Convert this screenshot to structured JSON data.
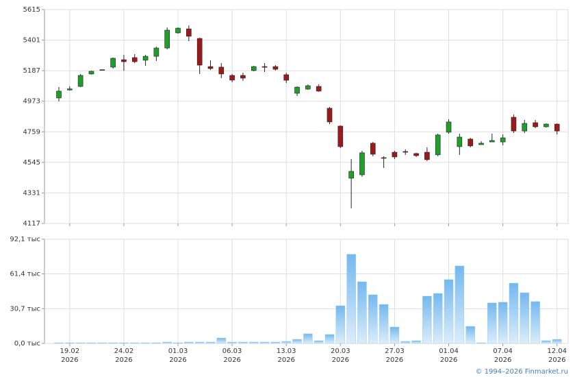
{
  "chart_data": {
    "type": "candlestick",
    "categories": [
      null,
      "19.02\n2026",
      null,
      null,
      null,
      null,
      "24.02\n2026",
      null,
      null,
      null,
      null,
      "01.03\n2026",
      null,
      null,
      null,
      null,
      "06.03\n2026",
      null,
      null,
      null,
      null,
      "13.03\n2026",
      null,
      null,
      null,
      null,
      "20.03\n2026",
      null,
      null,
      null,
      null,
      "27.03\n2026",
      null,
      null,
      null,
      null,
      "01.04\n2026",
      null,
      null,
      null,
      null,
      "07.04\n2026",
      null,
      null,
      null,
      null,
      "12.04\n2026"
    ],
    "open": [
      4996,
      5052,
      5077,
      5164,
      5192,
      5212,
      5264,
      5279,
      5260,
      5288,
      5346,
      5452,
      5480,
      5413,
      5216,
      5212,
      5154,
      5154,
      5188,
      5216,
      5216,
      5159,
      5029,
      5058,
      5077,
      4924,
      4799,
      4434,
      4458,
      4679,
      4573,
      4616,
      4621,
      4607,
      4616,
      4598,
      4756,
      4655,
      4708,
      4669,
      4688,
      4688,
      4861,
      4765,
      4823,
      4794,
      4813
    ],
    "high": [
      5073,
      5078,
      5164,
      5187,
      5196,
      5279,
      5298,
      5303,
      5298,
      5355,
      5490,
      5490,
      5504,
      5418,
      5260,
      5240,
      5164,
      5173,
      5221,
      5240,
      5226,
      5173,
      5077,
      5091,
      5092,
      4933,
      4804,
      4568,
      4626,
      4688,
      4588,
      4626,
      4636,
      4612,
      4650,
      4746,
      4847,
      4746,
      4717,
      4693,
      4746,
      4741,
      4880,
      4842,
      4842,
      4818,
      4818
    ],
    "low": [
      4972,
      5047,
      5072,
      5160,
      5190,
      5202,
      5187,
      5240,
      5221,
      5255,
      5336,
      5447,
      5394,
      5164,
      5192,
      5135,
      5106,
      5116,
      5183,
      5178,
      5188,
      5101,
      5010,
      5053,
      5039,
      4813,
      4645,
      4223,
      4444,
      4588,
      4506,
      4568,
      4597,
      4583,
      4554,
      4588,
      4746,
      4597,
      4650,
      4669,
      4688,
      4665,
      4751,
      4751,
      4784,
      4789,
      4741
    ],
    "close": [
      5044,
      5060,
      5154,
      5183,
      5194,
      5274,
      5250,
      5250,
      5288,
      5346,
      5471,
      5485,
      5428,
      5226,
      5202,
      5164,
      5121,
      5135,
      5216,
      5211,
      5197,
      5120,
      5072,
      5082,
      5044,
      4828,
      4655,
      4482,
      4612,
      4602,
      4578,
      4583,
      4616,
      4592,
      4564,
      4737,
      4828,
      4722,
      4660,
      4679,
      4698,
      4717,
      4765,
      4818,
      4794,
      4813,
      4765
    ],
    "ylim": [
      4117,
      5615
    ],
    "yticks": [
      4117,
      4331,
      4545,
      4759,
      4973,
      5187,
      5401,
      5615
    ],
    "up_color": "#1f9e2a",
    "down_color": "#9e1a1a",
    "grid": true,
    "volume": {
      "type": "bar",
      "color": "#8cc6f2",
      "values": [
        600,
        600,
        600,
        600,
        600,
        600,
        600,
        600,
        600,
        600,
        1200,
        600,
        1200,
        1200,
        1200,
        4800,
        1200,
        1200,
        1200,
        1200,
        1200,
        1800,
        3600,
        8500,
        2400,
        7900,
        33300,
        78800,
        54500,
        43000,
        34500,
        14500,
        1800,
        2400,
        41800,
        44200,
        56400,
        68500,
        15100,
        600,
        35800,
        36400,
        53300,
        44800,
        37000,
        2400,
        3600
      ],
      "ylim": [
        0,
        92100
      ],
      "yticks": [
        {
          "value": 0,
          "label": "0,0 тыс"
        },
        {
          "value": 30700,
          "label": "30,7 тыс"
        },
        {
          "value": 61400,
          "label": "61,4 тыс"
        },
        {
          "value": 92100,
          "label": "92,1 тыс"
        }
      ]
    },
    "credit": "© 1994–2026 Finmarket.ru"
  }
}
